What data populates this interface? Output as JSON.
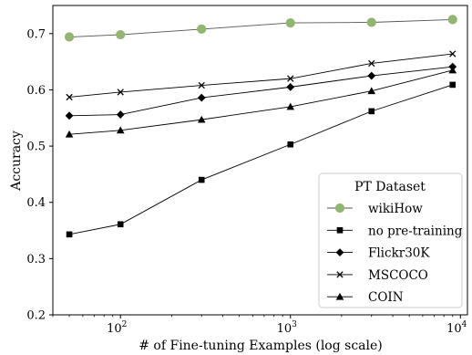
{
  "chart_data": {
    "type": "line",
    "xscale": "log",
    "xlim": [
      40,
      11000
    ],
    "ylim": [
      0.2,
      0.75
    ],
    "xlabel": "# of Fine-tuning Examples (log scale)",
    "ylabel": "Accuracy",
    "grid": false,
    "legend": {
      "title": "PT Dataset",
      "position": "bottom-right"
    },
    "x_ticks": [
      {
        "value": 100,
        "base": "10",
        "exp": "2"
      },
      {
        "value": 1000,
        "base": "10",
        "exp": "3"
      },
      {
        "value": 10000,
        "base": "10",
        "exp": "4"
      }
    ],
    "y_ticks": [
      {
        "value": 0.2,
        "label": "0.2"
      },
      {
        "value": 0.3,
        "label": "0.3"
      },
      {
        "value": 0.4,
        "label": "0.4"
      },
      {
        "value": 0.5,
        "label": "0.5"
      },
      {
        "value": 0.6,
        "label": "0.6"
      },
      {
        "value": 0.7,
        "label": "0.7"
      }
    ],
    "x": [
      50,
      100,
      300,
      1000,
      3000,
      9000
    ],
    "series": [
      {
        "name": "wikiHow",
        "marker": "circle",
        "color": "#93b572",
        "values": [
          0.694,
          0.698,
          0.708,
          0.719,
          0.72,
          0.725
        ]
      },
      {
        "name": "no pre-training",
        "marker": "square",
        "color": "#000000",
        "values": [
          0.343,
          0.361,
          0.44,
          0.503,
          0.562,
          0.609
        ]
      },
      {
        "name": "Flickr30K",
        "marker": "diamond",
        "color": "#000000",
        "values": [
          0.554,
          0.556,
          0.586,
          0.605,
          0.625,
          0.641
        ]
      },
      {
        "name": "MSCOCO",
        "marker": "x",
        "color": "#000000",
        "values": [
          0.587,
          0.596,
          0.608,
          0.62,
          0.647,
          0.664
        ]
      },
      {
        "name": "COIN",
        "marker": "triangle",
        "color": "#000000",
        "values": [
          0.521,
          0.528,
          0.547,
          0.57,
          0.598,
          0.635
        ]
      }
    ]
  }
}
